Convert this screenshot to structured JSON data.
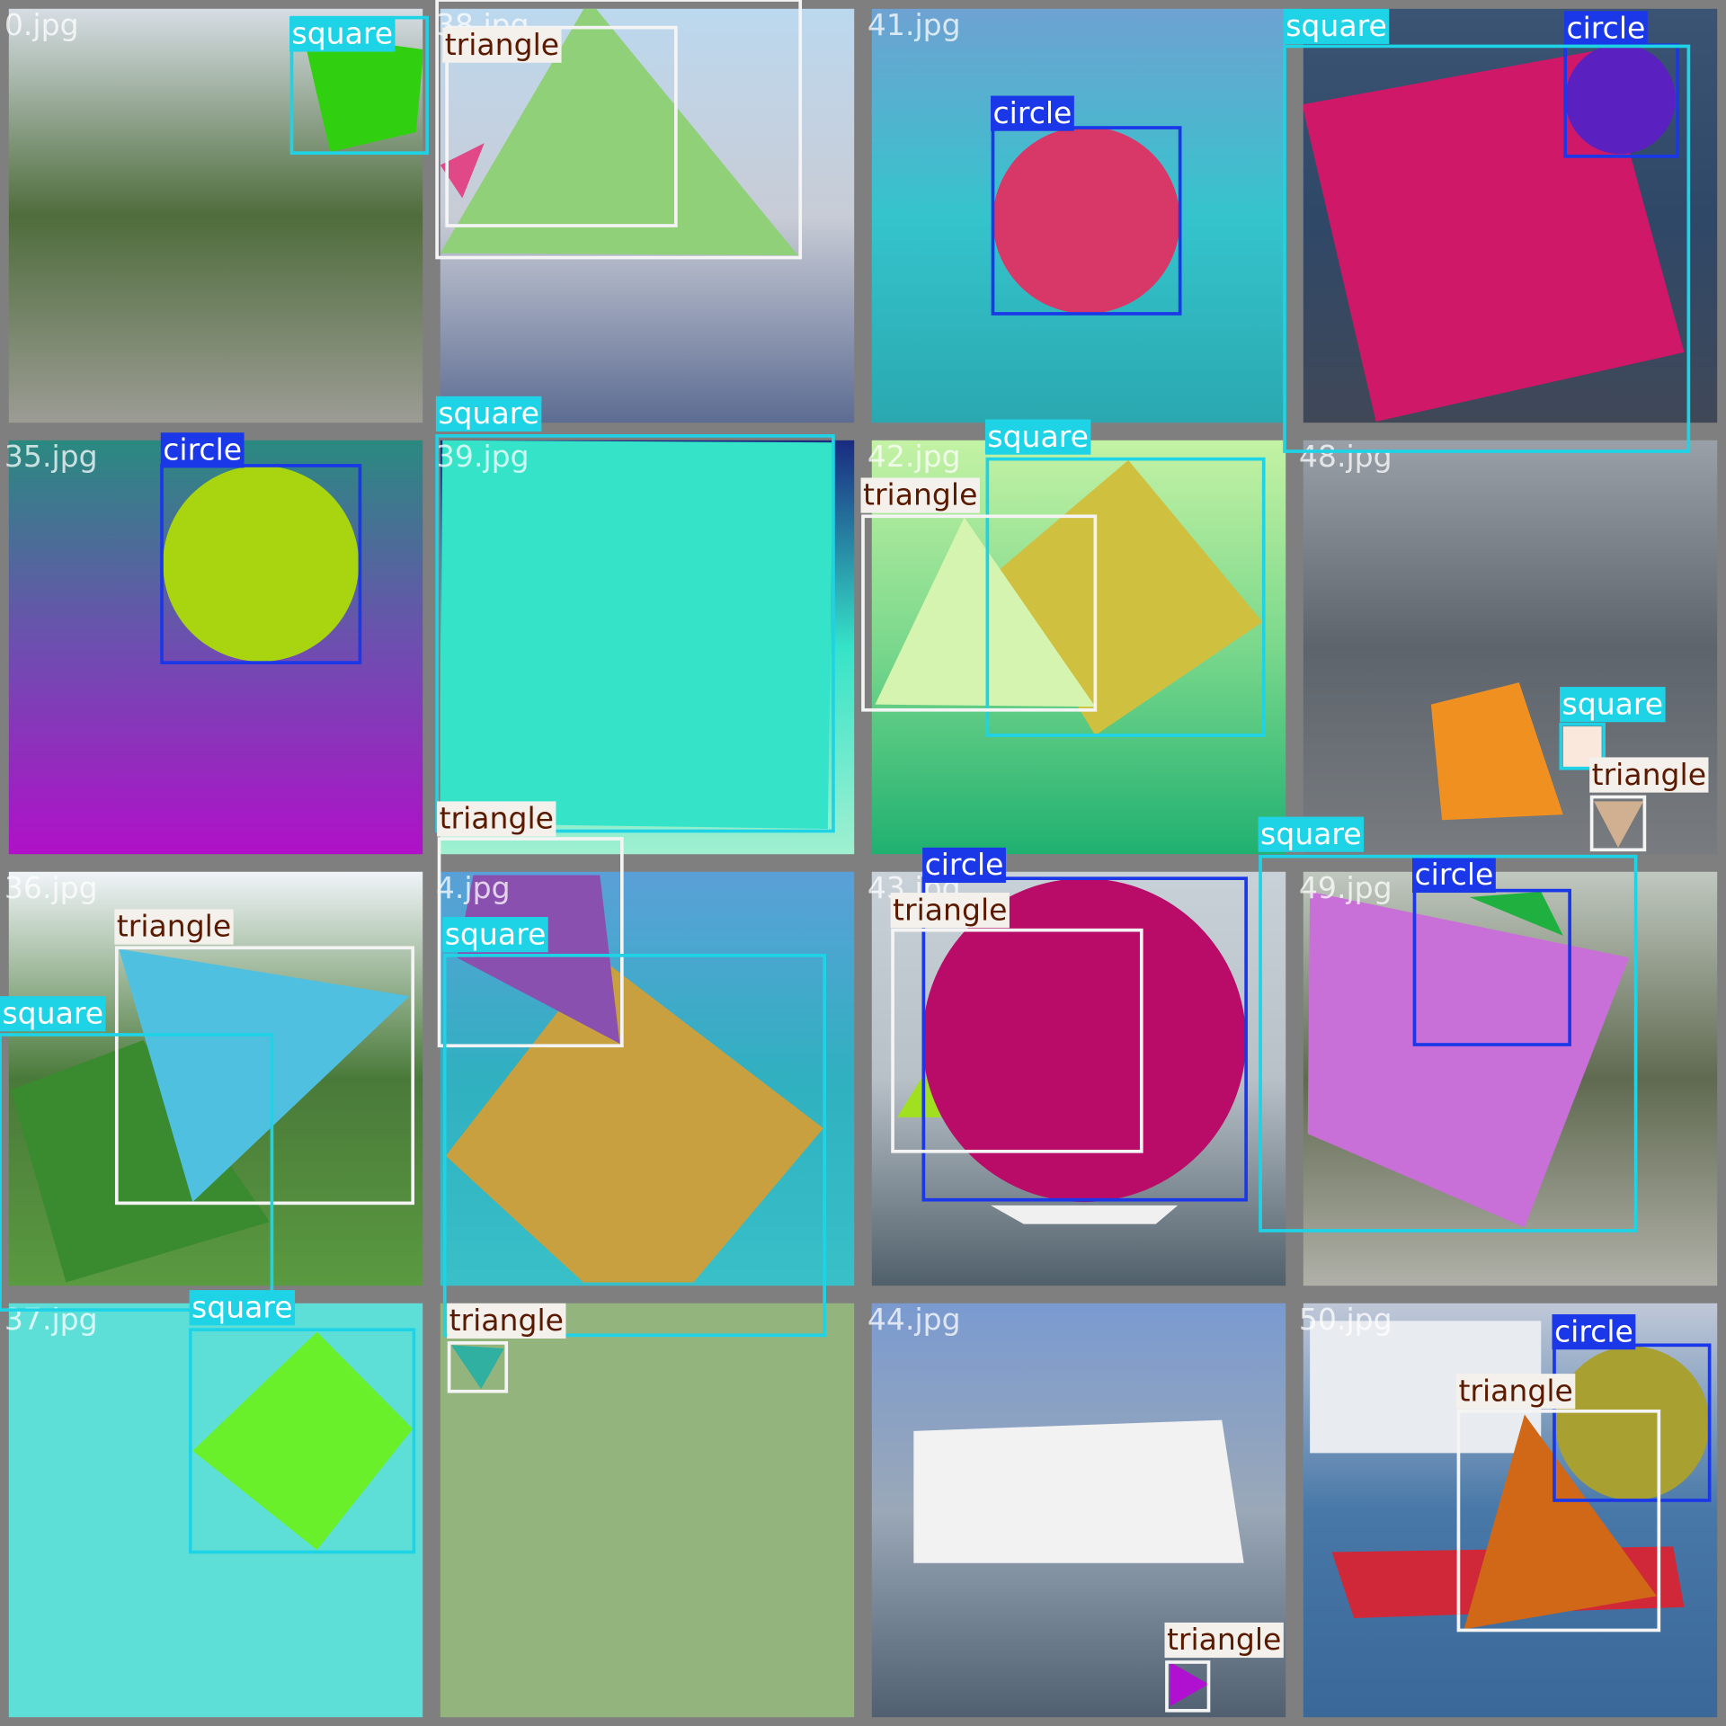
{
  "tiles": [
    {
      "name": "0.jpg",
      "labels": [
        "square"
      ]
    },
    {
      "name": "38.jpg",
      "labels": [
        "triangle"
      ]
    },
    {
      "name": "41.jpg",
      "labels": [
        "circle"
      ]
    },
    {
      "labels": [
        "square",
        "circle"
      ]
    },
    {
      "name": "35.jpg",
      "labels": [
        "circle"
      ]
    },
    {
      "name": "39.jpg",
      "labels": [
        "square",
        "triangle"
      ]
    },
    {
      "name": "42.jpg",
      "labels": [
        "square",
        "triangle"
      ]
    },
    {
      "name": "48.jpg",
      "labels": [
        "square",
        "triangle"
      ]
    },
    {
      "name": "36.jpg",
      "labels": [
        "triangle",
        "square"
      ]
    },
    {
      "name": "4.jpg",
      "labels": [
        "square"
      ]
    },
    {
      "name": "43.jpg",
      "labels": [
        "circle",
        "triangle"
      ]
    },
    {
      "name": "49.jpg",
      "labels": [
        "square",
        "circle"
      ]
    },
    {
      "name": "37.jpg",
      "labels": [
        "square"
      ]
    },
    {
      "labels": [
        "triangle"
      ]
    },
    {
      "name": "44.jpg",
      "labels": [
        "triangle"
      ]
    },
    {
      "name": "50.jpg",
      "labels": [
        "circle",
        "triangle"
      ]
    }
  ]
}
